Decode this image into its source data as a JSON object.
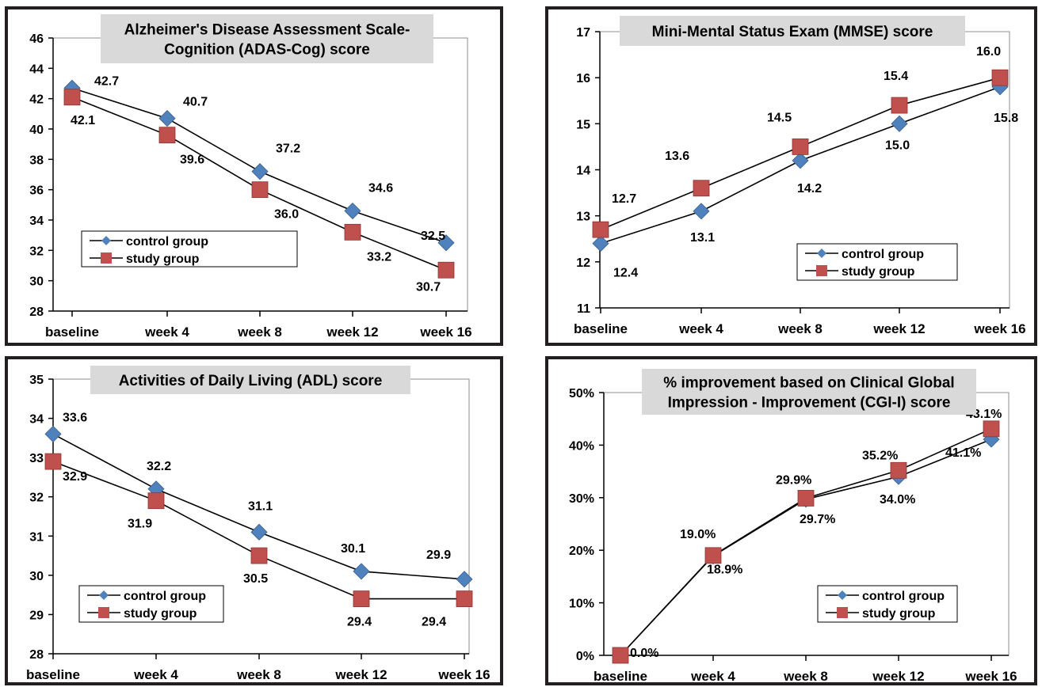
{
  "chart_data": [
    {
      "type": "line",
      "title_lines": [
        "Alzheimer's Disease Assessment Scale-",
        "Cognition (ADAS-Cog) score"
      ],
      "categories": [
        "baseline",
        "week 4",
        "week 8",
        "week 12",
        "week 16"
      ],
      "ylim": [
        28,
        46
      ],
      "ytick_step": 2,
      "ytick_labels": [
        "28",
        "30",
        "32",
        "34",
        "36",
        "38",
        "40",
        "42",
        "44",
        "46"
      ],
      "legend_position": "lower-left",
      "series": [
        {
          "name": "control group",
          "values": [
            42.7,
            40.7,
            37.2,
            34.6,
            32.5
          ],
          "labels": [
            "42.7",
            "40.7",
            "37.2",
            "34.6",
            "32.5"
          ],
          "color": "#4f81bd",
          "marker": "diamond"
        },
        {
          "name": "study group",
          "values": [
            42.1,
            39.6,
            36.0,
            33.2,
            30.7
          ],
          "labels": [
            "42.1",
            "39.6",
            "36.0",
            "33.2",
            "30.7"
          ],
          "color": "#c0504d",
          "marker": "square"
        }
      ]
    },
    {
      "type": "line",
      "title_lines": [
        "Mini-Mental Status Exam (MMSE) score"
      ],
      "categories": [
        "baseline",
        "week 4",
        "week 8",
        "week 12",
        "week 16"
      ],
      "ylim": [
        11,
        17
      ],
      "ytick_step": 1,
      "ytick_labels": [
        "11",
        "12",
        "13",
        "14",
        "15",
        "16",
        "17"
      ],
      "legend_position": "lower-right",
      "series": [
        {
          "name": "control group",
          "values": [
            12.4,
            13.1,
            14.2,
            15.0,
            15.8
          ],
          "labels": [
            "12.4",
            "13.1",
            "14.2",
            "15.0",
            "15.8"
          ],
          "color": "#4f81bd",
          "marker": "diamond"
        },
        {
          "name": "study group",
          "values": [
            12.7,
            13.6,
            14.5,
            15.4,
            16.0
          ],
          "labels": [
            "12.7",
            "13.6",
            "14.5",
            "15.4",
            "16.0"
          ],
          "color": "#c0504d",
          "marker": "square"
        }
      ]
    },
    {
      "type": "line",
      "title_lines": [
        "Activities of Daily Living (ADL) score"
      ],
      "categories": [
        "baseline",
        "week 4",
        "week 8",
        "week 12",
        "week 16"
      ],
      "ylim": [
        28,
        35
      ],
      "ytick_step": 1,
      "ytick_labels": [
        "28",
        "29",
        "30",
        "31",
        "32",
        "33",
        "34",
        "35"
      ],
      "legend_position": "lower-left",
      "series": [
        {
          "name": "control group",
          "values": [
            33.6,
            32.2,
            31.1,
            30.1,
            29.9
          ],
          "labels": [
            "33.6",
            "32.2",
            "31.1",
            "30.1",
            "29.9"
          ],
          "color": "#4f81bd",
          "marker": "diamond"
        },
        {
          "name": "study group",
          "values": [
            32.9,
            31.9,
            30.5,
            29.4,
            29.4
          ],
          "labels": [
            "32.9",
            "31.9",
            "30.5",
            "29.4",
            "29.4"
          ],
          "color": "#c0504d",
          "marker": "square"
        }
      ]
    },
    {
      "type": "line",
      "title_lines": [
        "% improvement based on Clinical Global",
        "Impression - Improvement (CGI-I) score"
      ],
      "categories": [
        "baseline",
        "week 4",
        "week 8",
        "week 12",
        "week 16"
      ],
      "ylim": [
        0,
        50
      ],
      "ytick_step": 10,
      "ytick_labels": [
        "0%",
        "10%",
        "20%",
        "30%",
        "40%",
        "50%"
      ],
      "legend_position": "lower-right",
      "series": [
        {
          "name": "control group",
          "values": [
            0.0,
            18.9,
            29.7,
            34.0,
            41.1
          ],
          "labels": [
            "",
            "18.9%",
            "29.7%",
            "34.0%",
            "41.1%"
          ],
          "color": "#4f81bd",
          "marker": "diamond"
        },
        {
          "name": "study group",
          "values": [
            0.0,
            19.0,
            29.9,
            35.2,
            43.1
          ],
          "labels": [
            "0.0%",
            "19.0%",
            "29.9%",
            "35.2%",
            "43.1%"
          ],
          "color": "#c0504d",
          "marker": "square"
        }
      ]
    }
  ]
}
